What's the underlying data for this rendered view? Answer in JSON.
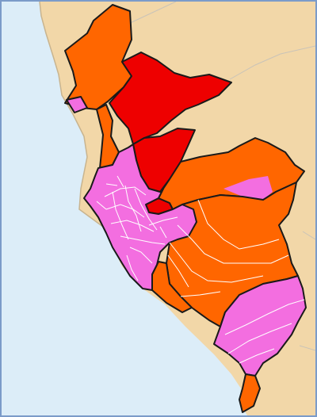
{
  "map": {
    "colors": {
      "ocean": "#dcedf8",
      "land": "#f2d7a8",
      "border_frame": "#7b9bc9",
      "outline": "#1a1a1a",
      "district_line": "#ffffff",
      "coast_line": "#c8b48f"
    },
    "legend_categories": [
      {
        "key": "red",
        "color": "#ee0000"
      },
      {
        "key": "orange",
        "color": "#ff6600"
      },
      {
        "key": "pink",
        "color": "#f36ee0"
      }
    ]
  }
}
